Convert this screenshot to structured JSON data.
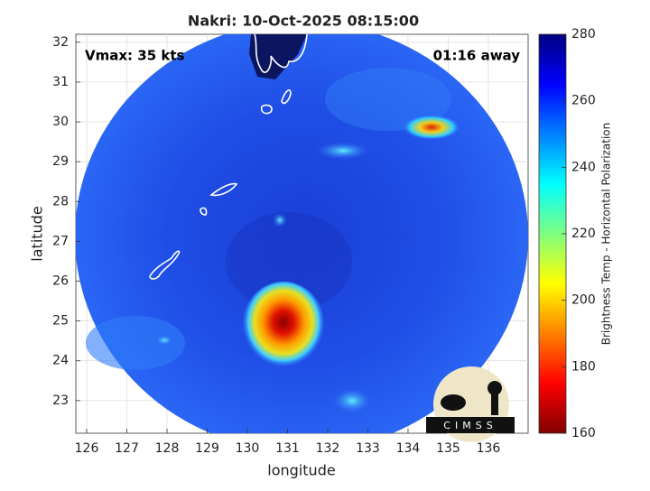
{
  "chart_data": {
    "type": "map",
    "title": "Nakri: 10-Oct-2025 08:15:00",
    "xlabel": "longitude",
    "ylabel": "latitude",
    "annotations": [
      "Vmax: 35 kts",
      "01:16 away"
    ],
    "colorbar_label": "Brightness Temp - Horizontal Polarization",
    "logo_text": "CIMSS",
    "xlim": [
      125.73,
      136.99
    ],
    "xticks": [
      126,
      127,
      128,
      129,
      130,
      131,
      132,
      133,
      134,
      135,
      136
    ],
    "ylim": [
      22.18,
      32.2
    ],
    "yticks": [
      23,
      24,
      25,
      26,
      27,
      28,
      29,
      30,
      31,
      32
    ],
    "clim": [
      160,
      280
    ],
    "cticks": [
      160,
      180,
      200,
      220,
      240,
      260,
      280
    ],
    "colormap": [
      "#800000",
      "#ff0000",
      "#ff8000",
      "#ffff00",
      "#80ff80",
      "#00ffff",
      "#0080ff",
      "#0000ff",
      "#000080"
    ],
    "grid": true
  }
}
